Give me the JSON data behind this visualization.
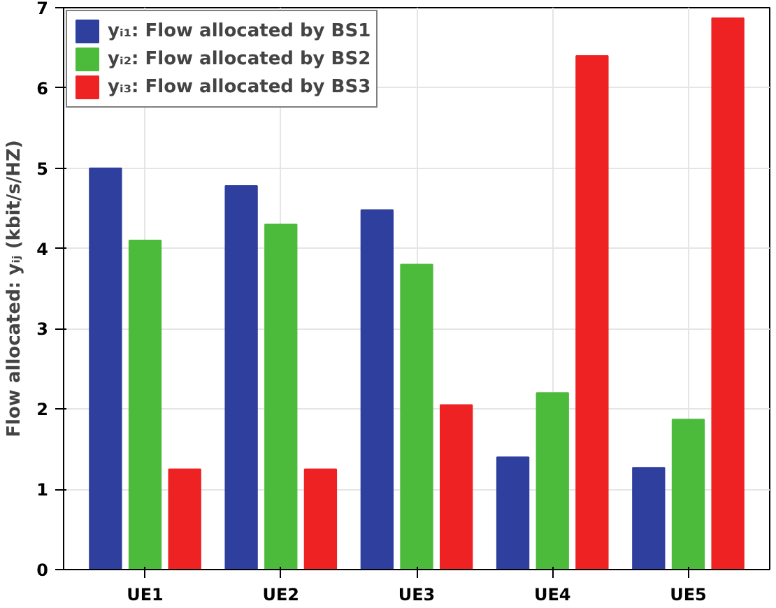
{
  "chart_data": {
    "type": "bar",
    "ylabel": "Flow allocated: yᵢⱼ (kbit/s/HZ)",
    "categories": [
      "UE1",
      "UE2",
      "UE3",
      "UE4",
      "UE5"
    ],
    "series": [
      {
        "name": "yᵢ₁: Flow allocated by BS1",
        "color": "#2e3f9e",
        "values": [
          5.0,
          4.78,
          4.48,
          1.4,
          1.27
        ]
      },
      {
        "name": "yᵢ₂: Flow allocated by BS2",
        "color": "#4cbb3c",
        "values": [
          4.1,
          4.3,
          3.8,
          2.2,
          1.87
        ]
      },
      {
        "name": "yᵢ₃: Flow allocated by BS3",
        "color": "#ee2222",
        "values": [
          1.25,
          1.25,
          2.05,
          6.4,
          6.87
        ]
      }
    ],
    "ylim": [
      0,
      7
    ],
    "yticks": [
      0,
      1,
      2,
      3,
      4,
      5,
      6,
      7
    ],
    "grid": true,
    "legend": "top left"
  }
}
